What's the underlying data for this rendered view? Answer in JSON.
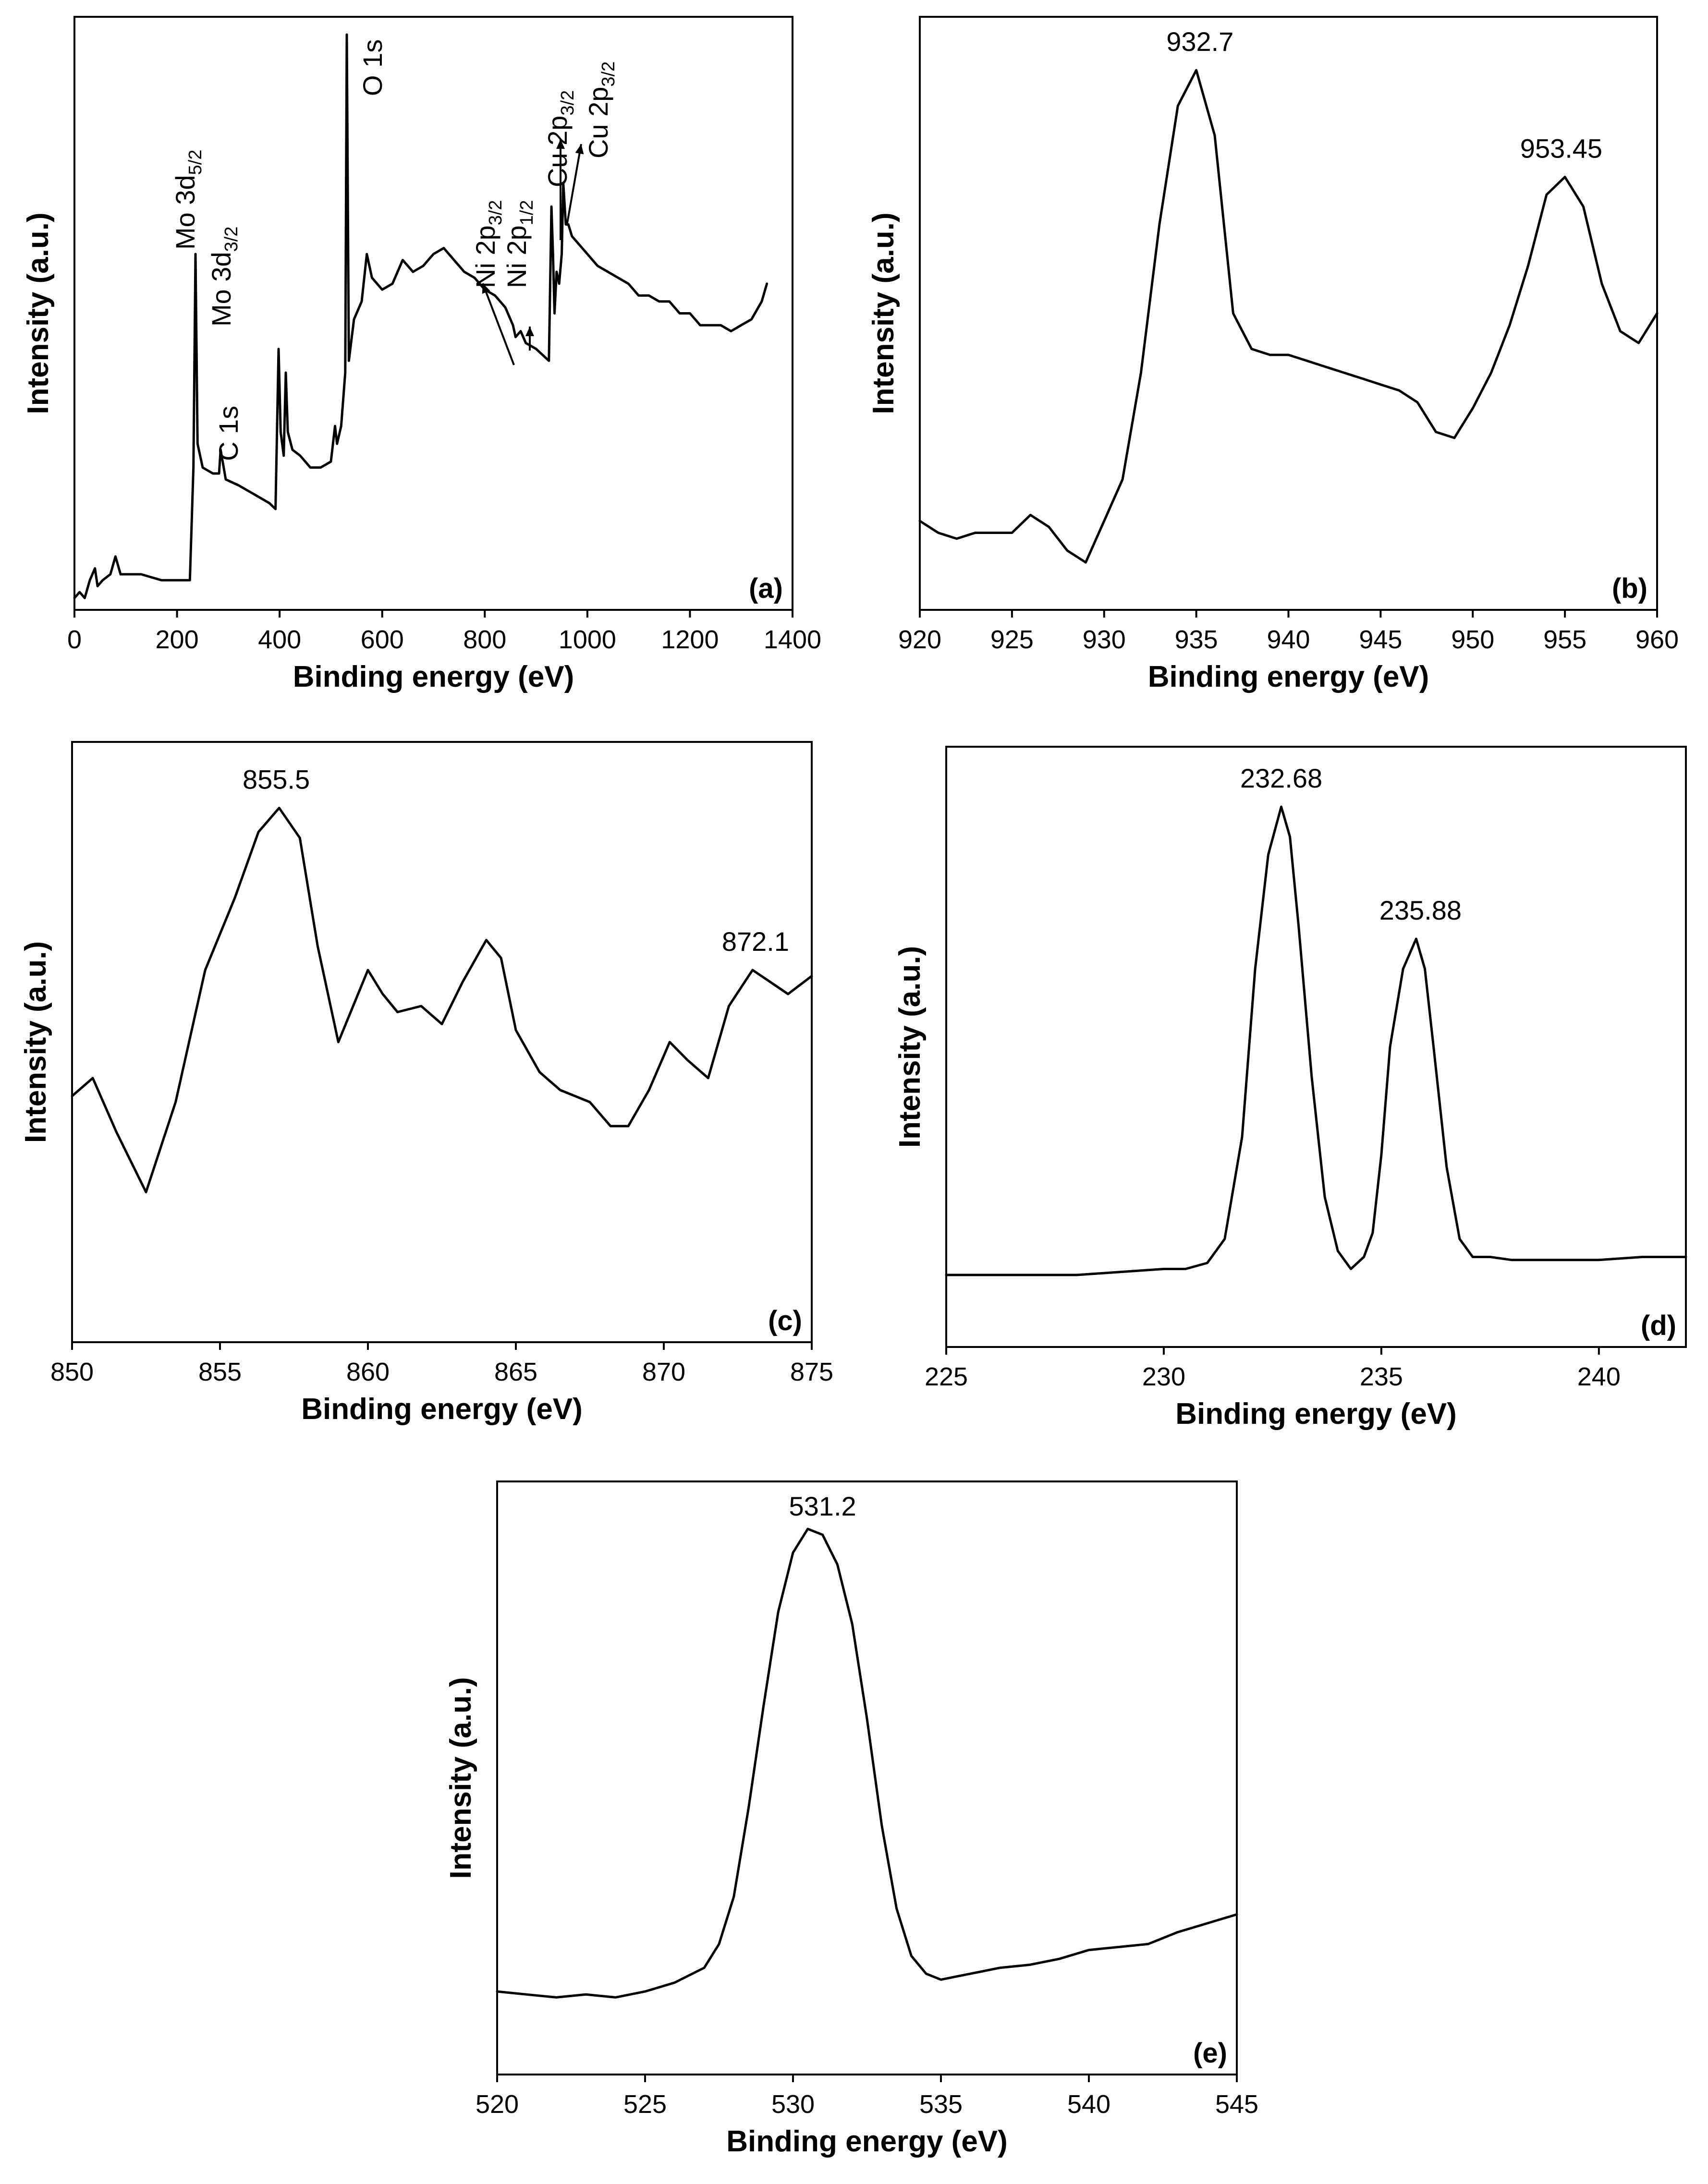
{
  "chart_data": [
    {
      "id": "a",
      "type": "line",
      "panel_label": "(a)",
      "xlabel": "Binding energy (eV)",
      "ylabel": "Intensity (a.u.)",
      "xlim": [
        0,
        1400
      ],
      "ylim": [
        0,
        100
      ],
      "xticks": [
        0,
        200,
        400,
        600,
        800,
        1000,
        1200,
        1400
      ],
      "x": [
        0,
        10,
        20,
        30,
        40,
        45,
        55,
        70,
        80,
        90,
        110,
        130,
        150,
        170,
        190,
        210,
        225,
        232,
        236,
        240,
        250,
        270,
        282,
        285,
        295,
        320,
        340,
        360,
        380,
        392,
        398,
        402,
        408,
        412,
        416,
        425,
        440,
        460,
        480,
        500,
        508,
        512,
        520,
        528,
        531,
        535,
        545,
        560,
        570,
        580,
        600,
        620,
        640,
        660,
        680,
        700,
        720,
        740,
        760,
        780,
        800,
        820,
        840,
        855,
        860,
        870,
        880,
        900,
        925,
        930,
        933,
        936,
        940,
        945,
        950,
        953,
        958,
        963,
        970,
        980,
        1000,
        1020,
        1040,
        1060,
        1080,
        1100,
        1120,
        1140,
        1160,
        1180,
        1200,
        1220,
        1240,
        1260,
        1280,
        1300,
        1320,
        1340,
        1350
      ],
      "y": [
        2,
        3,
        2,
        5,
        7,
        4,
        5,
        6,
        9,
        6,
        6,
        6,
        5.5,
        5,
        5,
        5,
        5,
        24,
        60,
        28,
        24,
        23,
        23,
        27,
        22,
        21,
        20,
        19,
        18,
        17,
        44,
        30,
        26,
        40,
        30,
        27,
        26,
        24,
        24,
        25,
        31,
        28,
        31,
        40,
        97,
        42,
        49,
        52,
        60,
        56,
        54,
        55,
        59,
        57,
        58,
        60,
        61,
        59,
        57,
        56,
        54,
        53,
        51,
        48,
        46,
        47,
        45,
        44,
        42,
        68,
        60,
        50,
        57,
        55,
        60,
        72,
        65,
        65,
        63,
        62,
        60,
        58,
        57,
        56,
        55,
        53,
        53,
        52,
        52,
        50,
        50,
        48,
        48,
        48,
        47,
        48,
        49,
        52,
        55
      ],
      "annotations": [
        {
          "text": "Mo 3d",
          "sub": "5/2",
          "x": 232
        },
        {
          "text": "Mo 3d",
          "sub": "3/2",
          "x": 258
        },
        {
          "text": "C 1s",
          "x": 284
        },
        {
          "text": "O 1s",
          "x": 531
        },
        {
          "text": "Ni 2p",
          "sub": "3/2",
          "x": 855
        },
        {
          "text": "Ni 2p",
          "sub": "1/2",
          "x": 872
        },
        {
          "text": "Cu 2p",
          "sub": "3/2",
          "x": 932
        },
        {
          "text": "Cu 2p",
          "sub": "3/2",
          "x": 952
        }
      ]
    },
    {
      "id": "b",
      "type": "line",
      "panel_label": "(b)",
      "xlabel": "Binding energy (eV)",
      "ylabel": "Intensity (a.u.)",
      "xlim": [
        920,
        960
      ],
      "ylim": [
        0,
        100
      ],
      "xticks": [
        920,
        925,
        930,
        935,
        940,
        945,
        950,
        955,
        960
      ],
      "x": [
        920,
        921,
        922,
        923,
        924,
        925,
        926,
        927,
        928,
        929,
        930,
        931,
        932,
        933,
        934,
        935,
        936,
        937,
        938,
        939,
        940,
        941,
        942,
        943,
        944,
        945,
        946,
        947,
        948,
        949,
        950,
        951,
        952,
        953,
        954,
        955,
        956,
        957,
        958,
        959,
        960
      ],
      "y": [
        15,
        13,
        12,
        13,
        13,
        13,
        16,
        14,
        10,
        8,
        15,
        22,
        40,
        65,
        85,
        91,
        80,
        50,
        44,
        43,
        43,
        42,
        41,
        40,
        39,
        38,
        37,
        35,
        30,
        29,
        34,
        40,
        48,
        58,
        70,
        73,
        68,
        55,
        47,
        45,
        50
      ],
      "peak_labels": [
        {
          "text": "932.7",
          "x": 935.2
        },
        {
          "text": "953.45",
          "x": 954.8
        }
      ]
    },
    {
      "id": "c",
      "type": "line",
      "panel_label": "(c)",
      "xlabel": "Binding energy (eV)",
      "ylabel": "Intensity (a.u.)",
      "xlim": [
        850,
        875
      ],
      "ylim": [
        0,
        100
      ],
      "xticks": [
        850,
        855,
        860,
        865,
        870,
        875
      ],
      "x": [
        850,
        850.7,
        851.5,
        852.5,
        853.5,
        854.5,
        855.5,
        856.3,
        857,
        857.7,
        858.3,
        859,
        859.5,
        860,
        860.5,
        861,
        861.8,
        862.5,
        863.2,
        864,
        864.5,
        865,
        865.8,
        866.5,
        867.5,
        868.2,
        868.8,
        869.5,
        870.2,
        870.8,
        871.5,
        872.2,
        873,
        873.6,
        874.2,
        875
      ],
      "y": [
        41,
        44,
        35,
        25,
        40,
        62,
        74,
        85,
        89,
        84,
        66,
        50,
        56,
        62,
        58,
        55,
        56,
        53,
        60,
        67,
        64,
        52,
        45,
        42,
        40,
        36,
        36,
        42,
        50,
        47,
        44,
        56,
        62,
        60,
        58,
        61
      ],
      "peak_labels": [
        {
          "text": "855.5",
          "x": 856.9
        },
        {
          "text": "872.1",
          "x": 873.1
        }
      ]
    },
    {
      "id": "d",
      "type": "line",
      "panel_label": "(d)",
      "xlabel": "Binding energy (eV)",
      "ylabel": "Intensity (a.u.)",
      "xlim": [
        225,
        242
      ],
      "ylim": [
        0,
        100
      ],
      "xticks": [
        225,
        230,
        235,
        240
      ],
      "x": [
        225,
        226,
        227,
        228,
        229,
        230,
        230.5,
        231,
        231.4,
        231.8,
        232.1,
        232.4,
        232.7,
        232.9,
        233.1,
        233.4,
        233.7,
        234,
        234.3,
        234.6,
        234.8,
        235.0,
        235.2,
        235.5,
        235.8,
        236.0,
        236.2,
        236.5,
        236.8,
        237.1,
        237.5,
        238,
        239,
        240,
        241,
        242
      ],
      "y": [
        12,
        12,
        12,
        12,
        12.5,
        13,
        13,
        14,
        18,
        35,
        63,
        82,
        90,
        85,
        70,
        45,
        25,
        16,
        13,
        15,
        19,
        32,
        50,
        63,
        68,
        63,
        50,
        30,
        18,
        15,
        15,
        14.5,
        14.5,
        14.5,
        15,
        15
      ],
      "peak_labels": [
        {
          "text": "232.68",
          "x": 232.7
        },
        {
          "text": "235.88",
          "x": 235.9
        }
      ]
    },
    {
      "id": "e",
      "type": "line",
      "panel_label": "(e)",
      "xlabel": "Binding energy (eV)",
      "ylabel": "Intensity (a.u.)",
      "xlim": [
        520,
        545
      ],
      "ylim": [
        0,
        100
      ],
      "xticks": [
        520,
        525,
        530,
        535,
        540,
        545
      ],
      "x": [
        520,
        521,
        522,
        523,
        524,
        525,
        526,
        527,
        527.5,
        528,
        528.5,
        529,
        529.5,
        530,
        530.5,
        531,
        531.5,
        532,
        532.5,
        533,
        533.5,
        534,
        534.5,
        535,
        535.5,
        536,
        537,
        538,
        539,
        540,
        541,
        542,
        543,
        544,
        545
      ],
      "y": [
        14,
        13.5,
        13,
        13.5,
        13,
        14,
        15.5,
        18,
        22,
        30,
        45,
        62,
        78,
        88,
        92,
        91,
        86,
        76,
        60,
        42,
        28,
        20,
        17,
        16,
        16.5,
        17,
        18,
        18.5,
        19.5,
        21,
        21.5,
        22,
        24,
        25.5,
        27
      ],
      "peak_labels": [
        {
          "text": "531.2",
          "x": 531
        }
      ]
    }
  ]
}
